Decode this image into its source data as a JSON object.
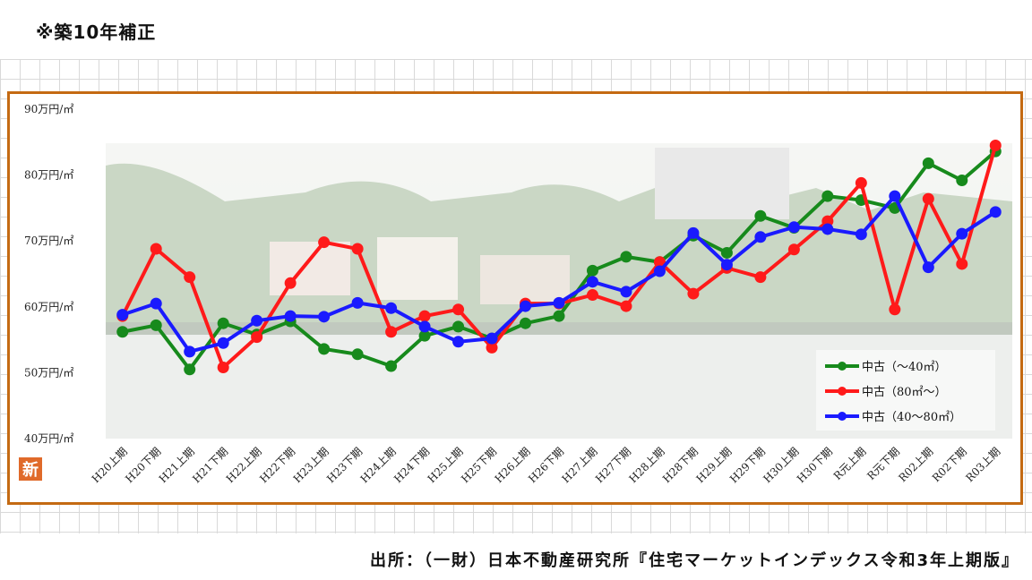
{
  "note": "※築10年補正",
  "source": "出所：（一財）日本不動産研究所『住宅マーケットインデックス令和3年上期版』",
  "badge": "新",
  "colors": {
    "frame": "#c46a12",
    "green": "#178a1c",
    "red": "#ff1a1a",
    "blue": "#1a1aff",
    "badge": "#e06a2a"
  },
  "chart_data": {
    "type": "line",
    "categories": [
      "H20上期",
      "H20下期",
      "H21上期",
      "H21下期",
      "H22上期",
      "H22下期",
      "H23上期",
      "H23下期",
      "H24上期",
      "H24下期",
      "H25上期",
      "H25下期",
      "H26上期",
      "H26下期",
      "H27上期",
      "H27下期",
      "H28上期",
      "H28下期",
      "H29上期",
      "H29下期",
      "H30上期",
      "H30下期",
      "R元上期",
      "R元下期",
      "R02上期",
      "R02下期",
      "R03上期"
    ],
    "y_tick_labels": [
      "40万円/㎡",
      "50万円/㎡",
      "60万円/㎡",
      "70万円/㎡",
      "80万円/㎡",
      "90万円/㎡"
    ],
    "ylim": [
      40,
      90
    ],
    "legend_position": "bottom-right",
    "series": [
      {
        "name": "中古（～40㎡）",
        "color": "#178a1c",
        "values": [
          56.2,
          57.2,
          50.5,
          57.5,
          55.8,
          57.8,
          53.6,
          52.8,
          51.0,
          55.6,
          57.0,
          55.2,
          57.5,
          58.6,
          65.5,
          67.6,
          66.8,
          70.8,
          68.2,
          73.8,
          72.0,
          76.8,
          76.2,
          75.0,
          81.8,
          79.2,
          83.6
        ]
      },
      {
        "name": "中古（80㎡～）",
        "color": "#ff1a1a",
        "values": [
          58.6,
          68.8,
          64.5,
          50.8,
          55.4,
          63.6,
          69.8,
          68.8,
          56.2,
          58.6,
          59.6,
          53.8,
          60.5,
          60.5,
          61.8,
          60.1,
          66.8,
          62.0,
          65.9,
          64.5,
          68.7,
          73.0,
          78.8,
          59.6,
          76.4,
          66.5,
          84.5
        ]
      },
      {
        "name": "中古（40～80㎡）",
        "color": "#1a1aff",
        "values": [
          58.8,
          60.5,
          53.2,
          54.5,
          57.9,
          58.6,
          58.5,
          60.6,
          59.8,
          57.0,
          54.7,
          55.2,
          60.1,
          60.6,
          63.8,
          62.3,
          65.4,
          71.2,
          66.4,
          70.6,
          72.1,
          71.8,
          71.0,
          76.8,
          66.0,
          71.1,
          74.4
        ]
      }
    ]
  }
}
